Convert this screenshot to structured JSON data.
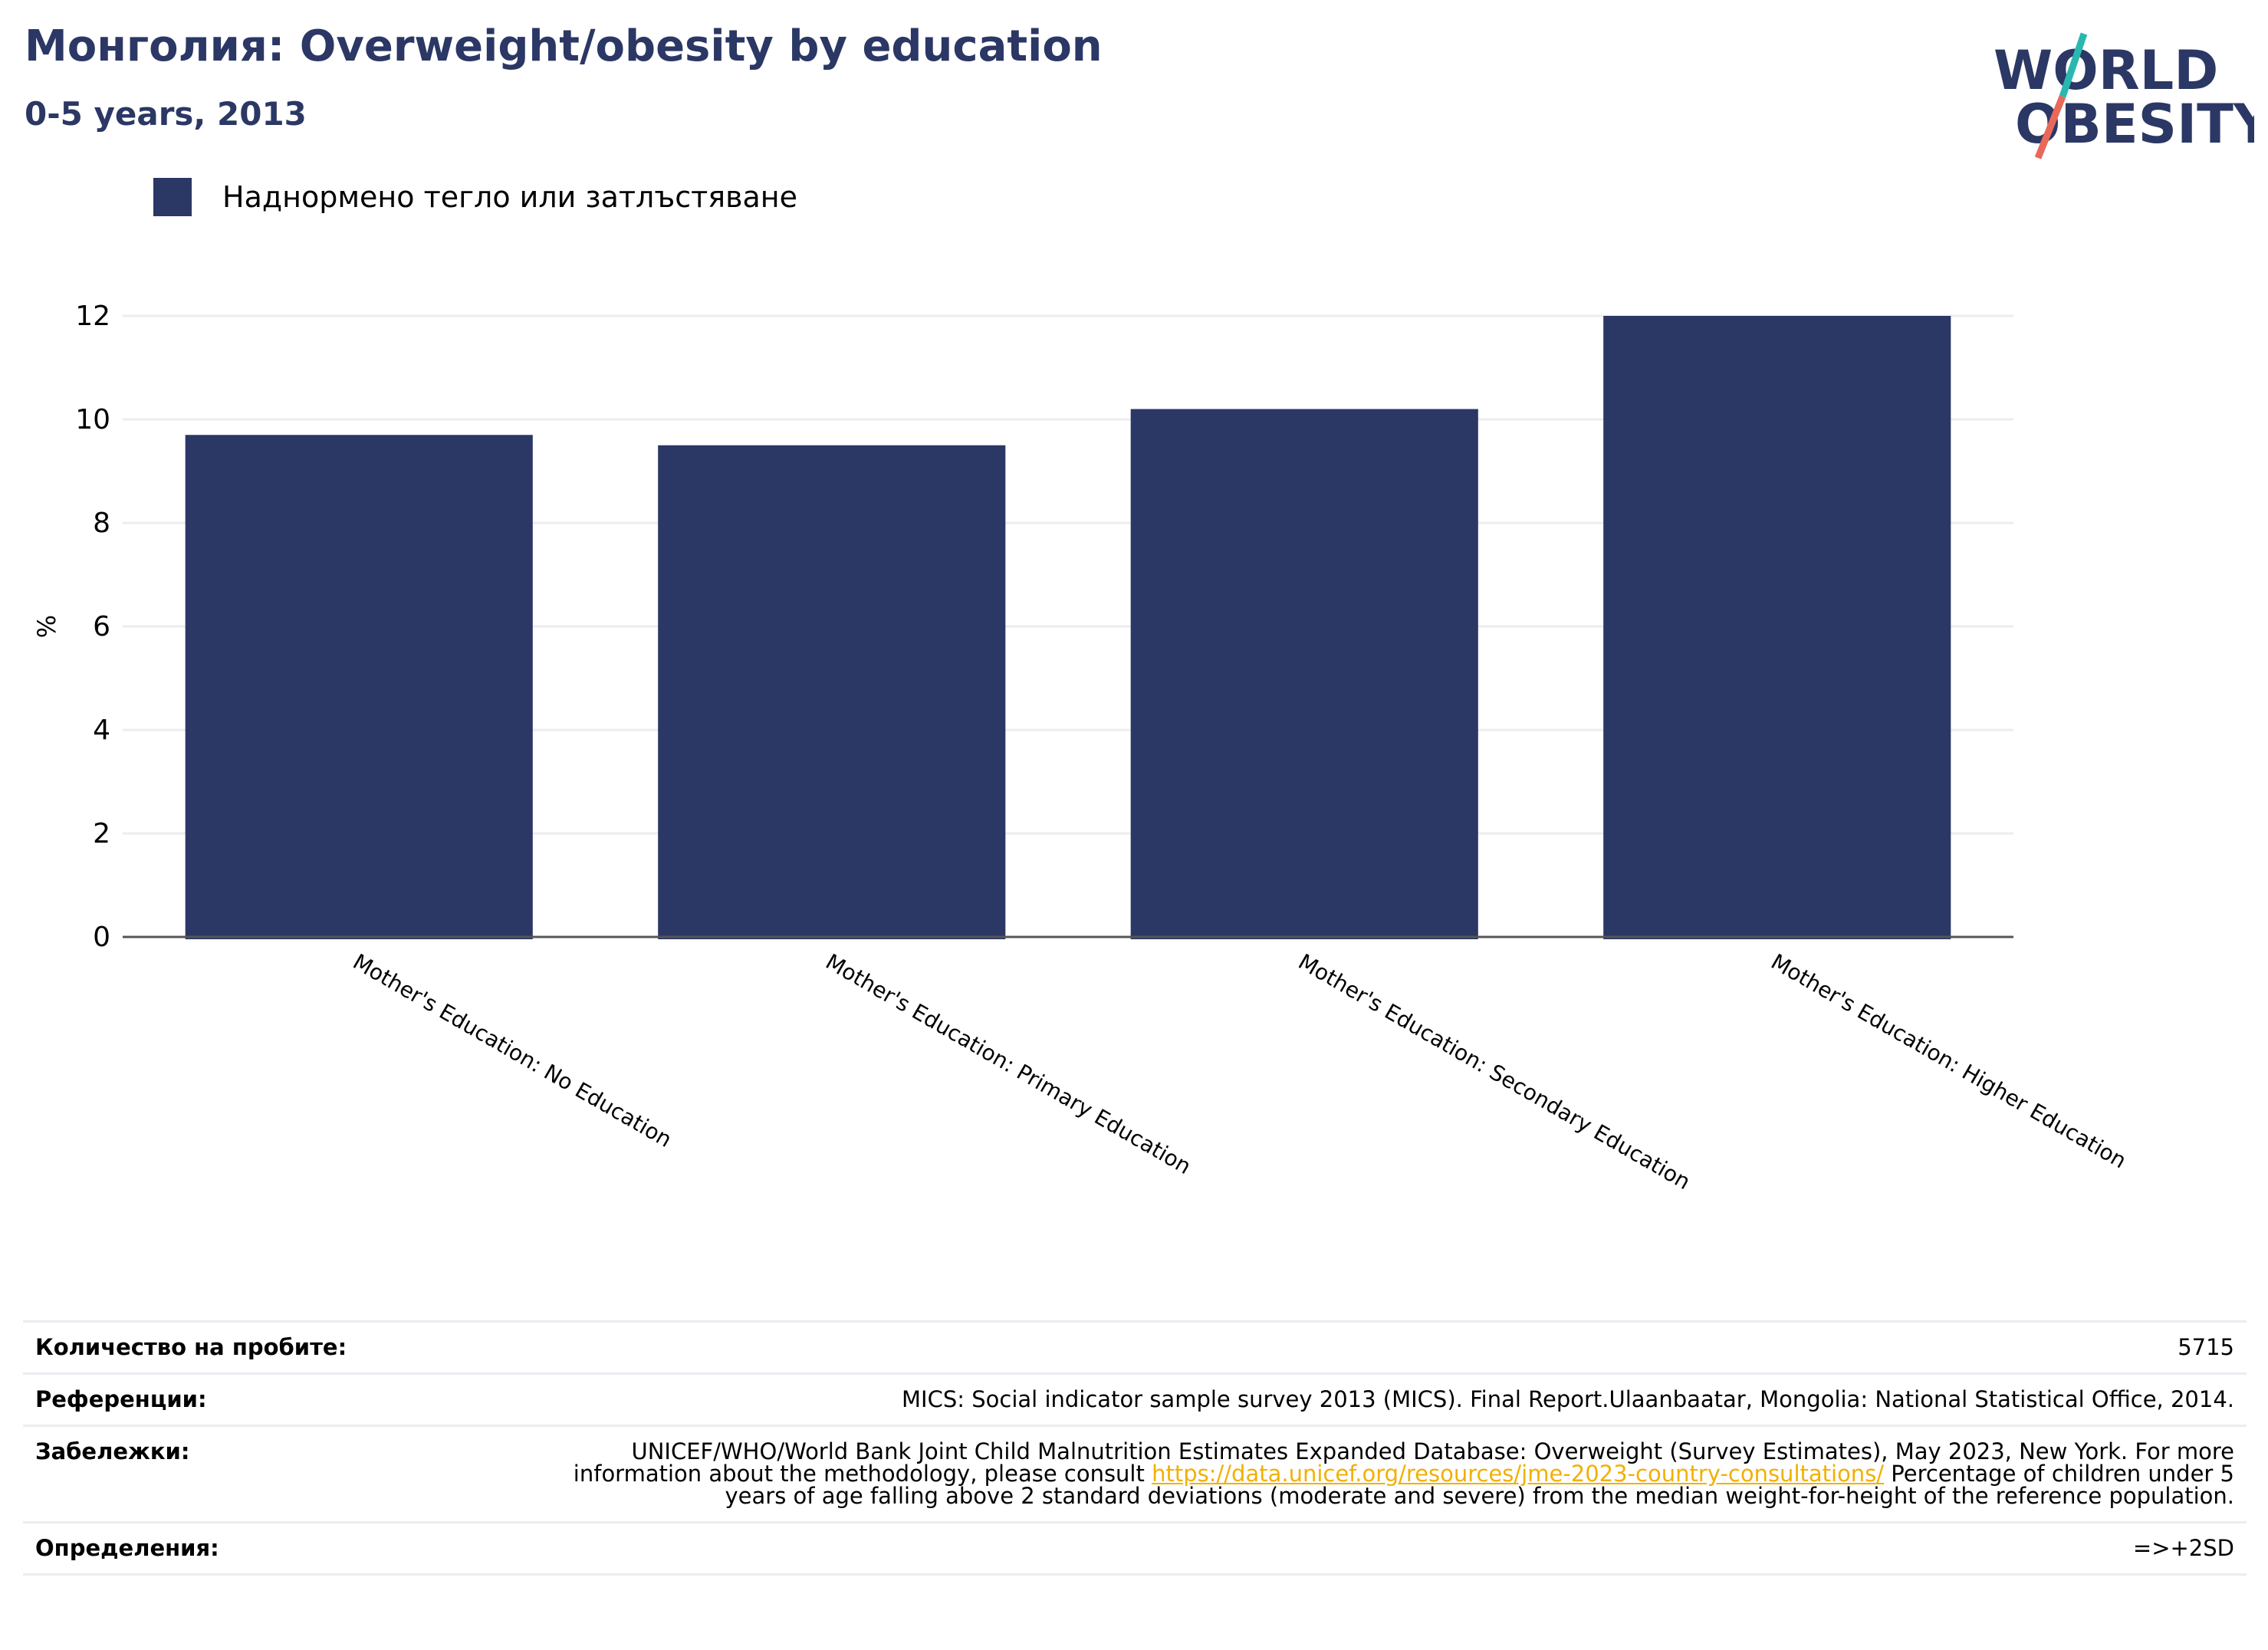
{
  "header": {
    "title": "Монголия: Overweight/obesity by education",
    "subtitle": "0-5 years, 2013"
  },
  "logo": {
    "line1": "WORLD",
    "line2": "OBESITY",
    "colors": {
      "text": "#2b3764",
      "slash_top": "#2ab7b0",
      "slash_bottom": "#e8685a"
    }
  },
  "legend": {
    "label": "Наднормено тегло или затлъстяване",
    "color": "#2b3764"
  },
  "chart_data": {
    "type": "bar",
    "title": "Монголия: Overweight/obesity by education",
    "subtitle": "0-5 years, 2013",
    "categories": [
      "Mother's Education: No Education",
      "Mother's Education: Primary Education",
      "Mother's Education: Secondary Education",
      "Mother's Education: Higher Education"
    ],
    "series": [
      {
        "name": "Наднормено тегло или затлъстяване",
        "values": [
          9.7,
          9.5,
          10.2,
          12.0
        ],
        "color": "#2b3764"
      }
    ],
    "ylabel": "%",
    "xlabel": "",
    "ylim": [
      0,
      12
    ],
    "yticks": [
      0,
      2,
      4,
      6,
      8,
      10,
      12
    ],
    "grid": true,
    "legend_position": "top-left"
  },
  "info": [
    {
      "key": "Количество на пробите:",
      "value": "5715"
    },
    {
      "key": "Референции:",
      "value": "MICS: Social indicator sample survey 2013 (MICS). Final Report.Ulaanbaatar, Mongolia: National Statistical Office, 2014."
    },
    {
      "key": "Забележки:",
      "value_before": "UNICEF/WHO/World Bank Joint Child Malnutrition Estimates Expanded Database: Overweight (Survey Estimates), May 2023, New York. For more information about the methodology, please consult",
      "link": "https://data.unicef.org/resources/jme-2023-country-consultations/",
      "value_after": "Percentage of children under 5 years of age falling above 2 standard deviations (moderate and severe) from the median weight-for-height of the reference population."
    },
    {
      "key": "Определения:",
      "value": "=>+2SD"
    }
  ]
}
